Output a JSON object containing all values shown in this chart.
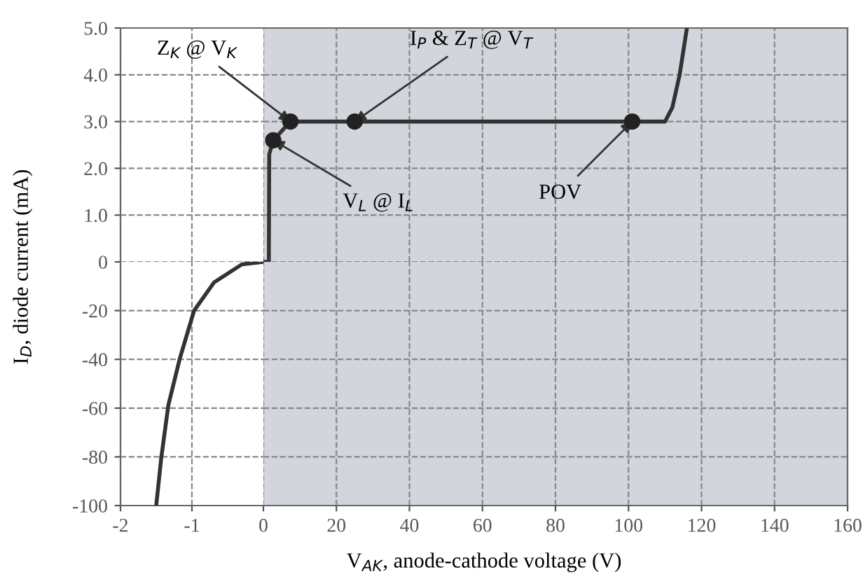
{
  "chart_data": [
    {
      "type": "line",
      "xlim": [
        -2,
        0
      ],
      "ylim": [
        0,
        5
      ],
      "xticks": [
        -2,
        -1
      ],
      "yticks": [
        0,
        {
          "value": 1,
          "label": "1.0"
        },
        {
          "value": 2,
          "label": "2.0"
        },
        {
          "value": 3,
          "label": "3.0"
        },
        {
          "value": 4,
          "label": "4.0"
        },
        {
          "value": 5,
          "label": "5.0"
        }
      ],
      "tick_labels": "y",
      "grid": true
    },
    {
      "type": "line",
      "xlim": [
        0,
        160
      ],
      "ylim": [
        0,
        5
      ],
      "xticks": [
        0,
        20,
        40,
        60,
        80,
        100,
        120,
        140,
        160
      ],
      "yticks": [
        0,
        1,
        2,
        3,
        4,
        5
      ],
      "tick_labels": false,
      "grid": true,
      "bands": [
        {
          "axis": "x",
          "from": 0,
          "to": 160,
          "color": "#d2d5dc"
        }
      ],
      "series": [
        {
          "color": "#333333",
          "x": [
            0,
            1.5,
            1.6,
            2.7,
            7.4,
            25,
            101,
            110,
            112,
            114,
            116
          ],
          "values": [
            0,
            0,
            2.3,
            2.6,
            3.0,
            3.0,
            3.0,
            3.0,
            3.3,
            4.0,
            5.0
          ]
        },
        {
          "type": "scatter",
          "marker": "circle",
          "color": "#222222",
          "x": [
            2.7,
            7.4,
            25,
            101
          ],
          "values": [
            2.6,
            3.0,
            3.0,
            3.0
          ]
        }
      ],
      "annotations": [
        {
          "text": "Z$_{K}$ @ V$_{K}$",
          "x": 7.4,
          "y": 3.0
        },
        {
          "text": "I$_{P}$ & Z$_{T}$ @ V$_{T}$",
          "x": 25,
          "y": 3.0
        },
        {
          "text": "V$_{L}$ @ I$_{L}$",
          "x": 2.7,
          "y": 2.6
        },
        {
          "text": "POV",
          "x": 101,
          "y": 3.0
        }
      ]
    },
    {
      "type": "line",
      "xlim": [
        -2,
        0
      ],
      "ylim": [
        -100,
        0
      ],
      "xticks": [
        -2,
        -1
      ],
      "yticks": [
        -100,
        -80,
        -60,
        -40,
        -20
      ],
      "grid": true,
      "ylabel": "I$_{D}$, diode current (mA)",
      "series": [
        {
          "color": "#333333",
          "x": [
            -1.5,
            -1.43,
            -1.33,
            -1.17,
            -0.97,
            -0.69,
            -0.3,
            0
          ],
          "values": [
            -100,
            -80.6,
            -58.8,
            -39.7,
            -20,
            -8.4,
            -1,
            0
          ]
        }
      ]
    },
    {
      "type": "line",
      "xlim": [
        0,
        160
      ],
      "ylim": [
        -100,
        0
      ],
      "xticks": [
        0,
        20,
        40,
        60,
        80,
        100,
        120,
        140,
        160
      ],
      "yticks": [
        -100,
        -80,
        -60,
        -40,
        -20
      ],
      "tick_labels": "x",
      "grid": true,
      "xlabel": "V$_{AK}$, anode-cathode voltage (V)",
      "bands": [
        {
          "axis": "x",
          "from": 0,
          "to": 160,
          "color": "#d2d5dc"
        }
      ]
    }
  ]
}
